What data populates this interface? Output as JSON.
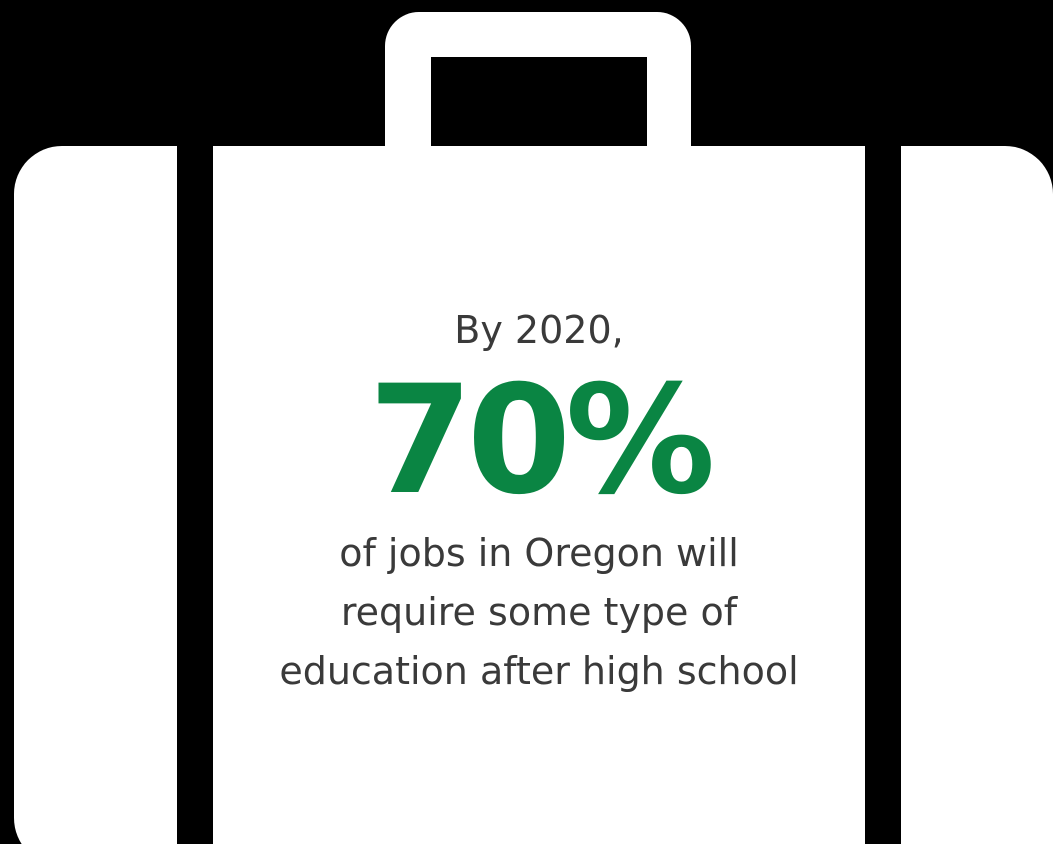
{
  "colors": {
    "background": "#000000",
    "suitcase": "#ffffff",
    "accent": "#0a8543",
    "text": "#3a3a3a"
  },
  "icon": "suitcase-icon",
  "infographic": {
    "lead": "By 2020,",
    "stat": "70%",
    "caption_lines": [
      "of jobs in Oregon will",
      "require some type of",
      "education after high school"
    ]
  }
}
